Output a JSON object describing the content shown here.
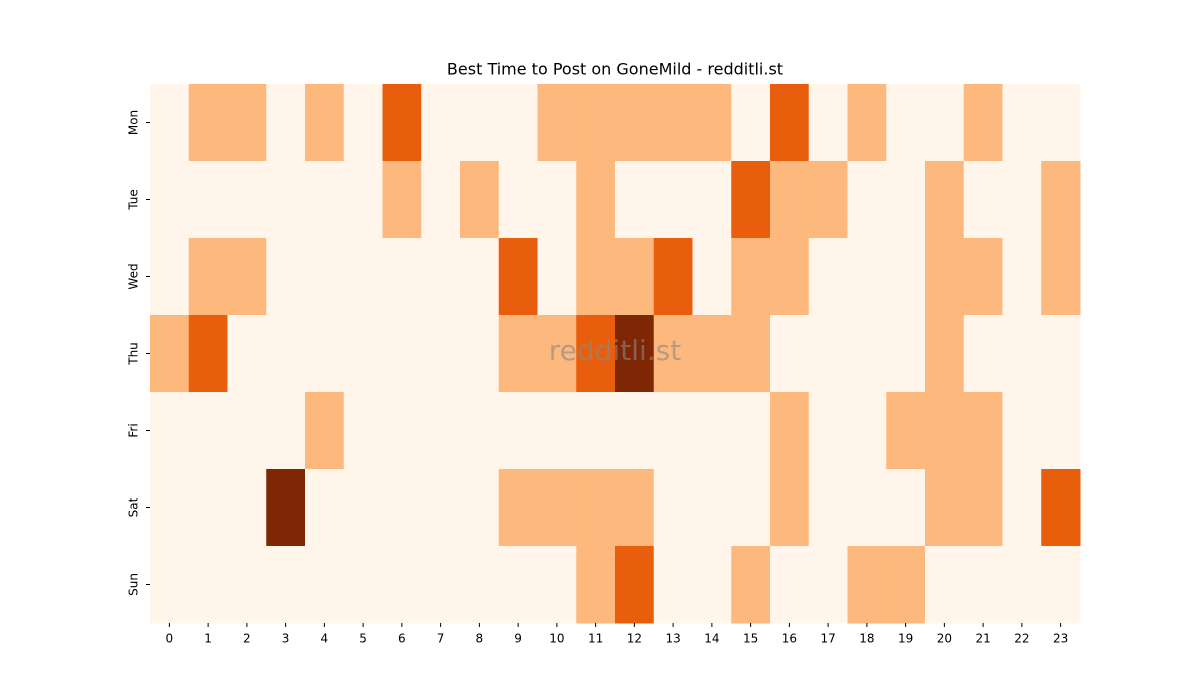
{
  "chart_data": {
    "type": "heatmap",
    "title": "Best Time to Post on GoneMild - redditli.st",
    "watermark": "redditli.st",
    "x": [
      0,
      1,
      2,
      3,
      4,
      5,
      6,
      7,
      8,
      9,
      10,
      11,
      12,
      13,
      14,
      15,
      16,
      17,
      18,
      19,
      20,
      21,
      22,
      23
    ],
    "y": [
      "Mon",
      "Tue",
      "Wed",
      "Thu",
      "Fri",
      "Sat",
      "Sun"
    ],
    "colors": [
      "#fff5eb",
      "#fdb97d",
      "#e95e0d",
      "#7f2704"
    ],
    "values": [
      [
        0,
        1,
        1,
        0,
        1,
        0,
        2,
        0,
        0,
        0,
        1,
        1,
        1,
        1,
        1,
        0,
        2,
        0,
        1,
        0,
        0,
        1,
        0,
        0
      ],
      [
        0,
        0,
        0,
        0,
        0,
        0,
        1,
        0,
        1,
        0,
        0,
        1,
        0,
        0,
        0,
        2,
        1,
        1,
        0,
        0,
        1,
        0,
        0,
        1
      ],
      [
        0,
        1,
        1,
        0,
        0,
        0,
        0,
        0,
        0,
        2,
        0,
        1,
        1,
        2,
        0,
        1,
        1,
        0,
        0,
        0,
        1,
        1,
        0,
        1
      ],
      [
        1,
        2,
        0,
        0,
        0,
        0,
        0,
        0,
        0,
        1,
        1,
        2,
        3,
        1,
        1,
        1,
        0,
        0,
        0,
        0,
        1,
        0,
        0,
        0
      ],
      [
        0,
        0,
        0,
        0,
        1,
        0,
        0,
        0,
        0,
        0,
        0,
        0,
        0,
        0,
        0,
        0,
        1,
        0,
        0,
        1,
        1,
        1,
        0,
        0
      ],
      [
        0,
        0,
        0,
        3,
        0,
        0,
        0,
        0,
        0,
        1,
        1,
        1,
        1,
        0,
        0,
        0,
        1,
        0,
        0,
        0,
        1,
        1,
        0,
        2
      ],
      [
        0,
        0,
        0,
        0,
        0,
        0,
        0,
        0,
        0,
        0,
        0,
        1,
        2,
        0,
        0,
        1,
        0,
        0,
        1,
        1,
        0,
        0,
        0,
        0
      ]
    ]
  }
}
